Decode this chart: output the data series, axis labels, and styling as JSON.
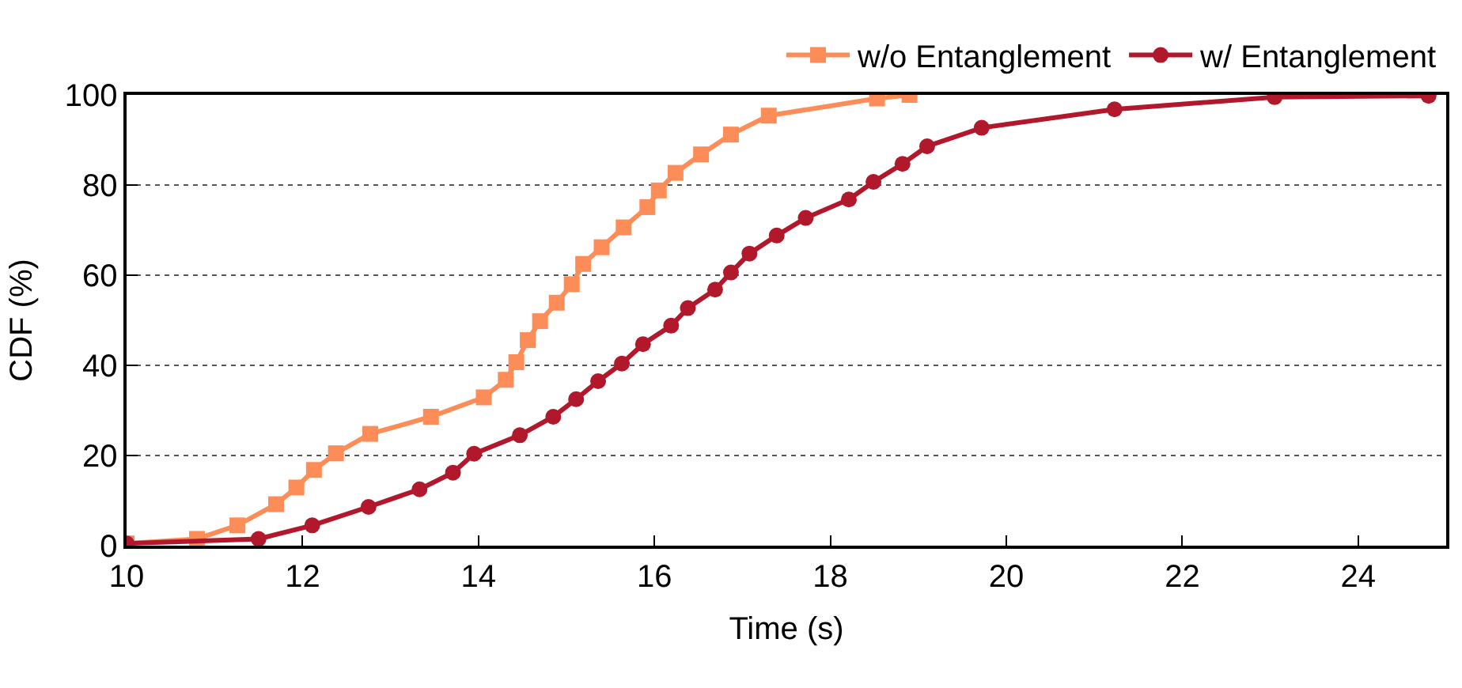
{
  "chart_data": {
    "type": "line",
    "xlabel": "Time (s)",
    "ylabel": "CDF (%)",
    "xlim": [
      10,
      25
    ],
    "xticks": [
      10,
      12,
      14,
      16,
      18,
      20,
      22,
      24
    ],
    "ylim": [
      0,
      100
    ],
    "yticks": [
      0,
      20,
      40,
      60,
      80,
      100
    ],
    "grid": "y",
    "legend": "top right",
    "line_style": "solid",
    "series": [
      {
        "name": "w/o Entanglement",
        "color": "#fc8d59",
        "marker": "square",
        "x": [
          10,
          10.8,
          11.26,
          11.7,
          11.93,
          12.13,
          12.38,
          12.77,
          13.46,
          14.06,
          14.31,
          14.43,
          14.56,
          14.7,
          14.89,
          15.06,
          15.19,
          15.4,
          15.65,
          15.92,
          16.05,
          16.24,
          16.53,
          16.87,
          17.3,
          18.53,
          18.9
        ],
        "values": [
          0.5,
          1.5,
          4.5,
          9.2,
          12.9,
          16.8,
          20.5,
          24.8,
          28.6,
          32.9,
          36.8,
          40.7,
          45.6,
          49.8,
          53.9,
          58,
          62.5,
          66.2,
          70.6,
          75.1,
          78.8,
          82.7,
          86.8,
          91.2,
          95.4,
          99.2,
          100
        ]
      },
      {
        "name": "w/ Entanglement",
        "color": "#b2182b",
        "marker": "circle",
        "x": [
          10,
          11.5,
          12.11,
          12.75,
          13.33,
          13.71,
          13.95,
          14.47,
          14.85,
          15.11,
          15.36,
          15.63,
          15.87,
          16.19,
          16.38,
          16.69,
          16.87,
          17.08,
          17.39,
          17.72,
          18.21,
          18.49,
          18.82,
          19.1,
          19.72,
          21.23,
          23.05,
          24.8
        ],
        "values": [
          0.5,
          1.5,
          4.5,
          8.6,
          12.5,
          16.2,
          20.4,
          24.5,
          28.6,
          32.5,
          36.5,
          40.4,
          44.7,
          48.8,
          52.7,
          56.8,
          60.6,
          64.8,
          68.8,
          72.7,
          76.8,
          80.7,
          84.7,
          88.6,
          92.7,
          96.8,
          99.5,
          99.8
        ]
      }
    ]
  }
}
